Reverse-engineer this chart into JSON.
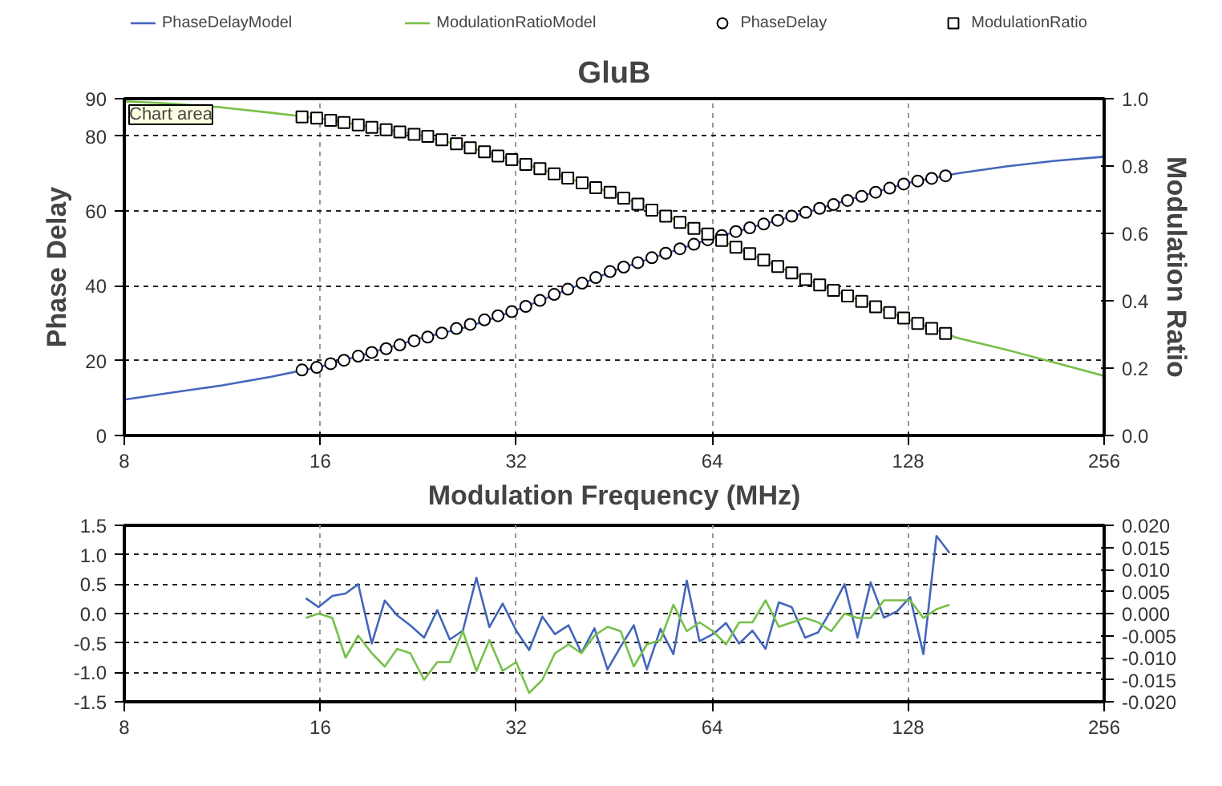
{
  "chart_data": [
    {
      "type": "line",
      "title": "GluB",
      "xlabel": "Modulation Frequency (MHz)",
      "ylabel": "Phase Delay",
      "y2label": "Modulation Ratio",
      "log": "x",
      "grid": true,
      "legend": "top",
      "xlim": [
        8,
        256
      ],
      "xticks": [
        8,
        16,
        32,
        64,
        128,
        256
      ],
      "ylim": [
        0,
        90
      ],
      "yticks": [
        0,
        20,
        40,
        60,
        80,
        90
      ],
      "y2lim": [
        0,
        1
      ],
      "y2ticks": [
        {
          "value": 0,
          "label": "0.0"
        },
        0.2,
        0.4,
        0.6,
        0.8,
        {
          "value": 1,
          "label": "1.0"
        }
      ],
      "annotations": [
        "Chart area"
      ],
      "series": [
        {
          "name": "PhaseDelayModel",
          "color": "#4466bb",
          "x": [
            8,
            9.51,
            11.31,
            13.45,
            16,
            19.03,
            22.63,
            26.91,
            32,
            38.05,
            45.25,
            53.82,
            64,
            76.11,
            90.51,
            107.6,
            128,
            152.2,
            181,
            215.3,
            256
          ],
          "values": [
            9.6,
            11.5,
            13.4,
            15.7,
            18.4,
            22.0,
            25.8,
            29.0,
            33.5,
            38.7,
            44.1,
            48.4,
            52.7,
            56.3,
            59.9,
            63.8,
            67.5,
            70.0,
            71.9,
            73.4,
            74.5
          ]
        },
        {
          "name": "ModulationRatioModel",
          "color": "#77c04a",
          "axis": "y2",
          "x": [
            8,
            9.51,
            11.31,
            13.45,
            16,
            19.03,
            22.63,
            26.91,
            32,
            38.05,
            45.25,
            53.82,
            64,
            76.11,
            90.51,
            107.6,
            128,
            152.2,
            181,
            215.3,
            256
          ],
          "values": [
            0.992,
            0.985,
            0.974,
            0.958,
            0.941,
            0.917,
            0.892,
            0.857,
            0.815,
            0.767,
            0.718,
            0.656,
            0.592,
            0.524,
            0.458,
            0.401,
            0.344,
            0.29,
            0.255,
            0.216,
            0.177
          ]
        },
        {
          "name": "PhaseDelay",
          "type": "scatter",
          "marker": "circle",
          "color": "#000000",
          "x": [
            15.0,
            15.8,
            16.6,
            17.4,
            18.3,
            19.2,
            20.2,
            21.2,
            22.3,
            23.4,
            24.6,
            25.9,
            27.2,
            28.6,
            30.0,
            31.5,
            33.1,
            34.8,
            36.6,
            38.4,
            40.4,
            42.4,
            44.6,
            46.8,
            49.2,
            51.7,
            54.3,
            57.1,
            60.0,
            63.0,
            66.2,
            69.6,
            73.1,
            76.8,
            80.7,
            84.8,
            89.1,
            93.6,
            98.3,
            103.3,
            108.6,
            114.1,
            119.9,
            126.0,
            132.4,
            139.1,
            146.1
          ],
          "values": [
            17.5,
            18.2,
            19.2,
            20.1,
            21.2,
            22.2,
            23.2,
            24.2,
            25.3,
            26.3,
            27.4,
            28.6,
            29.7,
            30.9,
            32.0,
            33.1,
            34.5,
            36.1,
            37.7,
            39.1,
            40.7,
            42.2,
            43.8,
            45.0,
            46.2,
            47.5,
            48.7,
            49.9,
            51.1,
            52.3,
            53.4,
            54.5,
            55.5,
            56.5,
            57.5,
            58.6,
            59.6,
            60.7,
            61.7,
            62.8,
            63.9,
            65.0,
            66.1,
            67.2,
            68.0,
            68.7,
            69.4
          ]
        },
        {
          "name": "ModulationRatio",
          "type": "scatter",
          "marker": "square",
          "color": "#000000",
          "axis": "y2",
          "x": [
            15.0,
            15.8,
            16.6,
            17.4,
            18.3,
            19.2,
            20.2,
            21.2,
            22.3,
            23.4,
            24.6,
            25.9,
            27.2,
            28.6,
            30.0,
            31.5,
            33.1,
            34.8,
            36.6,
            38.4,
            40.4,
            42.4,
            44.6,
            46.8,
            49.2,
            51.7,
            54.3,
            57.1,
            60.0,
            63.0,
            66.2,
            69.6,
            73.1,
            76.8,
            80.7,
            84.8,
            89.1,
            93.6,
            98.3,
            103.3,
            108.6,
            114.1,
            119.9,
            126.0,
            132.4,
            139.1,
            146.1
          ],
          "values": [
            0.946,
            0.942,
            0.936,
            0.929,
            0.922,
            0.915,
            0.908,
            0.901,
            0.894,
            0.888,
            0.878,
            0.866,
            0.854,
            0.842,
            0.83,
            0.819,
            0.805,
            0.792,
            0.777,
            0.764,
            0.75,
            0.736,
            0.722,
            0.705,
            0.687,
            0.669,
            0.651,
            0.633,
            0.615,
            0.598,
            0.579,
            0.559,
            0.54,
            0.521,
            0.502,
            0.483,
            0.463,
            0.447,
            0.431,
            0.414,
            0.398,
            0.382,
            0.365,
            0.349,
            0.333,
            0.318,
            0.303
          ]
        }
      ]
    },
    {
      "type": "line",
      "log": "x",
      "grid": true,
      "xlim": [
        8,
        256
      ],
      "xticks": [
        8,
        16,
        32,
        64,
        128,
        256
      ],
      "ylim": [
        -1.5,
        1.5
      ],
      "yticks": [
        -1.5,
        {
          "value": -1,
          "label": "-1.0"
        },
        -0.5,
        {
          "value": 0,
          "label": "0.0"
        },
        0.5,
        {
          "value": 1,
          "label": "1.0"
        },
        1.5
      ],
      "y2lim": [
        -0.02,
        0.02
      ],
      "y2ticks": [
        {
          "value": -0.02,
          "label": "-0.020"
        },
        {
          "value": -0.015,
          "label": "-0.015"
        },
        {
          "value": -0.01,
          "label": "-0.010"
        },
        {
          "value": -0.005,
          "label": "-0.005"
        },
        {
          "value": 0,
          "label": "0.000"
        },
        {
          "value": 0.005,
          "label": "0.005"
        },
        {
          "value": 0.01,
          "label": "0.010"
        },
        {
          "value": 0.015,
          "label": "0.015"
        },
        {
          "value": 0.02,
          "label": "0.020"
        }
      ],
      "series": [
        {
          "color": "#4466bb",
          "x": [
            15.2,
            15.9,
            16.7,
            17.5,
            18.3,
            19.2,
            20.1,
            21.0,
            22.0,
            23.1,
            24.2,
            25.3,
            26.5,
            27.8,
            29.1,
            30.5,
            32.0,
            33.5,
            35.1,
            36.7,
            38.5,
            40.3,
            42.2,
            44.2,
            46.3,
            48.5,
            50.8,
            53.3,
            55.8,
            58.5,
            61.2,
            64.2,
            67.2,
            70.4,
            73.8,
            77.3,
            81.0,
            84.8,
            88.9,
            93.1,
            97.5,
            102.2,
            107.0,
            112.1,
            117.5,
            123.1,
            128.9,
            135.1,
            141.5,
            148.2
          ],
          "values": [
            0.26,
            0.11,
            0.3,
            0.34,
            0.5,
            -0.51,
            0.22,
            -0.03,
            -0.2,
            -0.41,
            0.06,
            -0.44,
            -0.29,
            0.61,
            -0.23,
            0.17,
            -0.29,
            -0.62,
            -0.05,
            -0.35,
            -0.2,
            -0.67,
            -0.25,
            -0.95,
            -0.56,
            -0.2,
            -0.95,
            -0.26,
            -0.69,
            0.56,
            -0.47,
            -0.35,
            -0.16,
            -0.51,
            -0.29,
            -0.6,
            0.19,
            0.11,
            -0.41,
            -0.32,
            0.06,
            0.5,
            -0.41,
            0.53,
            -0.07,
            0.04,
            0.28,
            -0.69,
            1.32,
            1.03
          ]
        },
        {
          "color": "#77c04a",
          "axis": "y2",
          "x": [
            15.2,
            15.9,
            16.7,
            17.5,
            18.3,
            19.2,
            20.1,
            21.0,
            22.0,
            23.1,
            24.2,
            25.3,
            26.5,
            27.8,
            29.1,
            30.5,
            32.0,
            33.5,
            35.1,
            36.7,
            38.5,
            40.3,
            42.2,
            44.2,
            46.3,
            48.5,
            50.8,
            53.3,
            55.8,
            58.5,
            61.2,
            64.2,
            67.2,
            70.4,
            73.8,
            77.3,
            81.0,
            84.8,
            88.9,
            93.1,
            97.5,
            102.2,
            107.0,
            112.1,
            117.5,
            123.1,
            128.9,
            135.1,
            141.5,
            148.2
          ],
          "values": [
            -0.001,
            0.0,
            -0.001,
            -0.01,
            -0.005,
            -0.009,
            -0.012,
            -0.008,
            -0.009,
            -0.015,
            -0.011,
            -0.011,
            -0.004,
            -0.013,
            -0.006,
            -0.013,
            -0.011,
            -0.018,
            -0.015,
            -0.009,
            -0.007,
            -0.009,
            -0.005,
            -0.003,
            -0.004,
            -0.012,
            -0.007,
            -0.006,
            0.002,
            -0.004,
            -0.002,
            -0.004,
            -0.007,
            -0.002,
            -0.002,
            0.003,
            -0.003,
            -0.002,
            -0.001,
            -0.002,
            -0.004,
            0.0,
            -0.001,
            -0.001,
            0.003,
            0.003,
            0.003,
            -0.001,
            0.001,
            0.002
          ]
        }
      ]
    }
  ]
}
